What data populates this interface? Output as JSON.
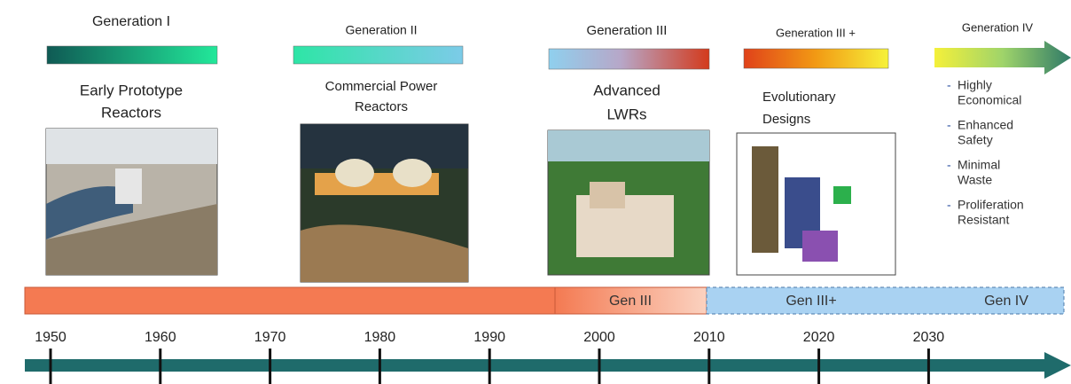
{
  "generations": [
    {
      "label": "Generation I",
      "subtitle": [
        "Early Prototype",
        "Reactors"
      ]
    },
    {
      "label": "Generation II",
      "subtitle": [
        "Commercial Power",
        "Reactors"
      ]
    },
    {
      "label": "Generation III",
      "subtitle": [
        "Advanced",
        "LWRs"
      ]
    },
    {
      "label": "Generation III +",
      "subtitle": [
        "Evolutionary",
        "Designs"
      ]
    },
    {
      "label": "Generation IV",
      "bullets": [
        [
          "Highly",
          "Economical"
        ],
        [
          "Enhanced",
          "Safety"
        ],
        [
          "Minimal",
          "Waste"
        ],
        [
          "Proliferation",
          "Resistant"
        ]
      ]
    }
  ],
  "timeline": {
    "segments": [
      "Gen III",
      "Gen III+",
      "Gen IV"
    ],
    "years": [
      "1950",
      "1960",
      "1970",
      "1980",
      "1990",
      "2000",
      "2010",
      "2020",
      "2030"
    ]
  }
}
